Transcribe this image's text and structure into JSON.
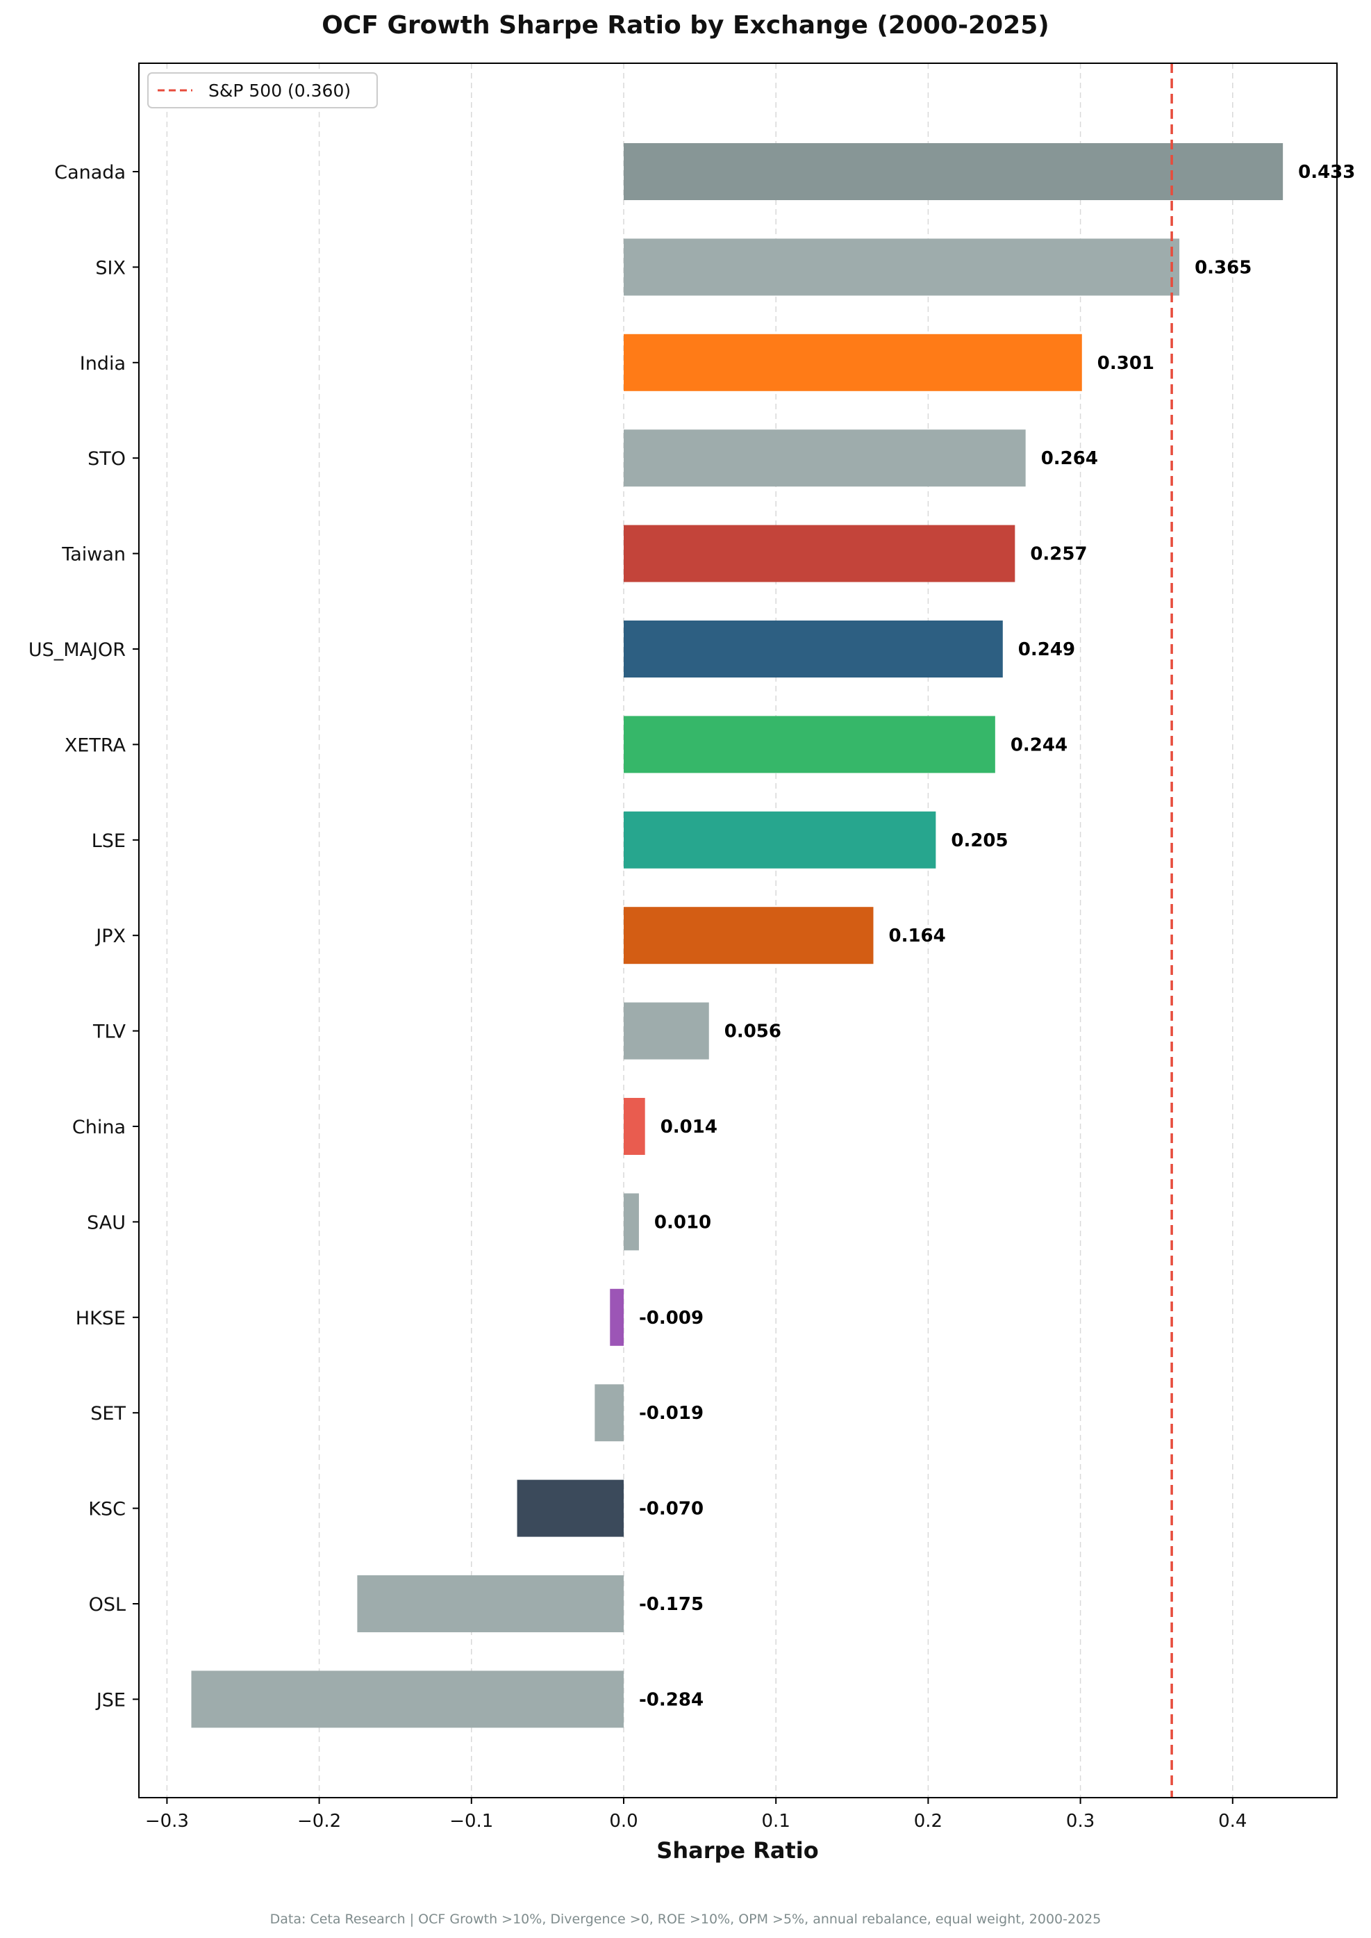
{
  "chart_data": {
    "type": "bar",
    "orientation": "horizontal",
    "title": "OCF Growth Sharpe Ratio by Exchange (2000-2025)",
    "xlabel": "Sharpe Ratio",
    "ylabel": "",
    "xlim": [
      -0.32,
      0.47
    ],
    "x_ticks": [
      -0.3,
      -0.2,
      -0.1,
      0.0,
      0.1,
      0.2,
      0.3,
      0.4
    ],
    "x_tick_labels": [
      "−0.3",
      "−0.2",
      "−0.1",
      "0.0",
      "0.1",
      "0.2",
      "0.3",
      "0.4"
    ],
    "grid": "vertical dashed",
    "categories": [
      "Canada",
      "SIX",
      "India",
      "STO",
      "Taiwan",
      "US_MAJOR",
      "XETRA",
      "LSE",
      "JPX",
      "TLV",
      "China",
      "SAU",
      "HKSE",
      "SET",
      "KSC",
      "OSL",
      "JSE"
    ],
    "values": [
      0.433,
      0.365,
      0.301,
      0.264,
      0.257,
      0.249,
      0.244,
      0.205,
      0.164,
      0.056,
      0.014,
      0.01,
      -0.009,
      -0.019,
      -0.07,
      -0.175,
      -0.284
    ],
    "value_labels": [
      "0.433",
      "0.365",
      "0.301",
      "0.264",
      "0.257",
      "0.249",
      "0.244",
      "0.205",
      "0.164",
      "0.056",
      "0.014",
      "0.010",
      "-0.009",
      "-0.019",
      "-0.070",
      "-0.175",
      "-0.284"
    ],
    "colors": [
      "#879696",
      "#9eacac",
      "#ff7b17",
      "#9eacac",
      "#c3443a",
      "#2d5f82",
      "#36b769",
      "#27a68e",
      "#d35d14",
      "#9eacac",
      "#e95c4f",
      "#9eacac",
      "#9c55b6",
      "#9eacac",
      "#3b4a5b",
      "#9eacac",
      "#9eacac"
    ],
    "reference_line": {
      "value": 0.36,
      "label": "S&P 500 (0.360)",
      "color": "#e74c3c",
      "style": "dashed"
    },
    "legend": {
      "placement": "top-left",
      "entries": [
        "S&P 500 (0.360)"
      ]
    },
    "footnote": "Data: Ceta Research | OCF Growth >10%, Divergence >0, ROE >10%, OPM >5%, annual rebalance, equal weight, 2000-2025"
  }
}
